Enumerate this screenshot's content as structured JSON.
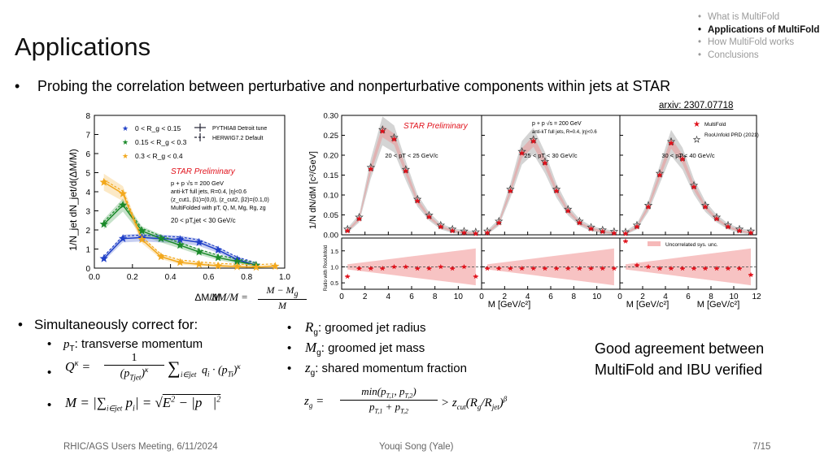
{
  "slide": {
    "title": "Applications",
    "nav": [
      "What is MultiFold",
      "Applications of MultiFold",
      "How MultiFold works",
      "Conclusions"
    ],
    "nav_current": 1,
    "main_bullet": "Probing the correlation between perturbative and nonperturbative components within jets at STAR",
    "arxiv": "arxiv: 2307.07718",
    "correct_header": "Simultaneously correct for:",
    "pt_label": ": transverse momentum",
    "rg_label": ": groomed jet radius",
    "mg_label": ": groomed jet mass",
    "zg_label": ": shared momentum fraction",
    "agreement_line1": "Good agreement between",
    "agreement_line2": "MultiFold and IBU verified",
    "footer_left": "RHIC/AGS Users Meeting, 6/11/2024",
    "footer_center": "Youqi Song (Yale)",
    "footer_right": "7/15"
  },
  "colors": {
    "blue": "#1f3fc7",
    "green": "#1a8a2a",
    "orange": "#f2a81d",
    "star_red": "#e0101a",
    "ratio_band": "#f6b9b9",
    "gray_band": "#c9c9c9"
  },
  "chart_data": [
    {
      "type": "line",
      "ylabel": "1/N_jet dN_jet/d(ΔM/M)",
      "xlabel": "ΔM/M",
      "xlim": [
        0,
        1.0
      ],
      "ylim": [
        0,
        8
      ],
      "xticks": [
        "0.0",
        "0.2",
        "0.4",
        "0.6",
        "0.8",
        "1.0"
      ],
      "yticks": [
        "0",
        "1",
        "2",
        "3",
        "4",
        "5",
        "6",
        "7",
        "8"
      ],
      "legend": [
        "0 < R_g < 0.15",
        "0.15 < R_g < 0.3",
        "0.3 < R_g < 0.4"
      ],
      "legend2": [
        "PYTHIA8 Detroit tune",
        "HERWIG7.2 Default"
      ],
      "annotations": [
        "STAR Preliminary",
        "p + p √s = 200 GeV",
        "anti-kT full jets, R=0.4, |η|<0.6",
        "(z_cut1, β1)=(0,0), (z_cut2, β2)=(0.1,0)",
        "MultiFolded with pT, Q, M, Mg, Rg, zg",
        "20 < pT,jet < 30 GeV/c"
      ],
      "x": [
        0.05,
        0.15,
        0.25,
        0.35,
        0.45,
        0.55,
        0.65,
        0.75,
        0.85,
        0.95
      ],
      "series": [
        {
          "name": "0 < R_g < 0.15",
          "values": [
            0.5,
            1.55,
            1.6,
            1.55,
            1.5,
            1.35,
            0.95,
            0.45,
            0.15,
            null
          ]
        },
        {
          "name": "0.15 < R_g < 0.3",
          "values": [
            2.3,
            3.3,
            1.95,
            1.55,
            1.2,
            0.85,
            0.55,
            0.35,
            0.15,
            null
          ]
        },
        {
          "name": "0.3 < R_g < 0.4",
          "values": [
            4.5,
            3.9,
            1.5,
            0.6,
            0.3,
            0.2,
            0.12,
            0.08,
            0.05,
            0.1
          ]
        }
      ]
    },
    {
      "type": "scatter",
      "ylabel": "1/N dN/dM [c²/GeV]",
      "ratio_ylabel": "Ratio with RooUnfold",
      "xlabel": "M [GeV/c²]",
      "ylim": [
        0,
        0.3
      ],
      "yticks": [
        "0.00",
        "0.05",
        "0.10",
        "0.15",
        "0.20",
        "0.25",
        "0.30"
      ],
      "ratio_yticks": [
        "0.5",
        "1.0",
        "1.5"
      ],
      "legend": [
        "MultiFold",
        "RooUnfold PRD (2021)",
        "Uncorrelated sys. unc."
      ],
      "annotations": [
        "STAR Preliminary",
        "p + p √s = 200 GeV",
        "anti-kT full jets, R=0.4, |η|<0.6"
      ],
      "panels": [
        {
          "pt_bin": "20 < pT < 25 GeV/c",
          "xlim": [
            0,
            12
          ],
          "xticks": [
            "0",
            "2",
            "4",
            "6",
            "8",
            "10"
          ],
          "x": [
            0.5,
            1.5,
            2.5,
            3.5,
            4.5,
            5.5,
            6.5,
            7.5,
            8.5,
            9.5,
            10.5,
            11.5
          ],
          "values": [
            0.01,
            0.04,
            0.165,
            0.26,
            0.24,
            0.16,
            0.085,
            0.045,
            0.02,
            0.01,
            0.005,
            0.003
          ],
          "ratio": [
            0.7,
            0.95,
            0.95,
            0.95,
            1.0,
            1.0,
            0.95,
            0.95,
            1.0,
            0.95,
            1.0,
            0.7
          ]
        },
        {
          "pt_bin": "25 < pT < 30 GeV/c",
          "xlim": [
            0,
            12
          ],
          "xticks": [
            "0",
            "2",
            "4",
            "6",
            "8",
            "10"
          ],
          "x": [
            0.5,
            1.5,
            2.5,
            3.5,
            4.5,
            5.5,
            6.5,
            7.5,
            8.5,
            9.5,
            10.5,
            11.5
          ],
          "values": [
            0.005,
            0.03,
            0.11,
            0.205,
            0.235,
            0.18,
            0.11,
            0.06,
            0.03,
            0.015,
            0.008,
            0.004
          ],
          "ratio": [
            0.95,
            0.95,
            0.95,
            0.95,
            0.95,
            0.95,
            0.95,
            0.95,
            0.95,
            0.95,
            0.95,
            0.95
          ]
        },
        {
          "pt_bin": "30 < pT < 40 GeV/c",
          "xlim": [
            0,
            12
          ],
          "xticks": [
            "0",
            "2",
            "4",
            "6",
            "8",
            "10",
            "12"
          ],
          "x": [
            0.5,
            1.5,
            2.5,
            3.5,
            4.5,
            5.5,
            6.5,
            7.5,
            8.5,
            9.5,
            10.5,
            11.5
          ],
          "values": [
            0.003,
            0.02,
            0.07,
            0.15,
            0.23,
            0.19,
            0.12,
            0.07,
            0.04,
            0.02,
            0.01,
            0.005
          ],
          "ratio": [
            1.8,
            1.05,
            1.0,
            0.95,
            0.95,
            0.95,
            0.95,
            0.95,
            0.95,
            0.95,
            0.95,
            0.75
          ]
        }
      ]
    }
  ]
}
